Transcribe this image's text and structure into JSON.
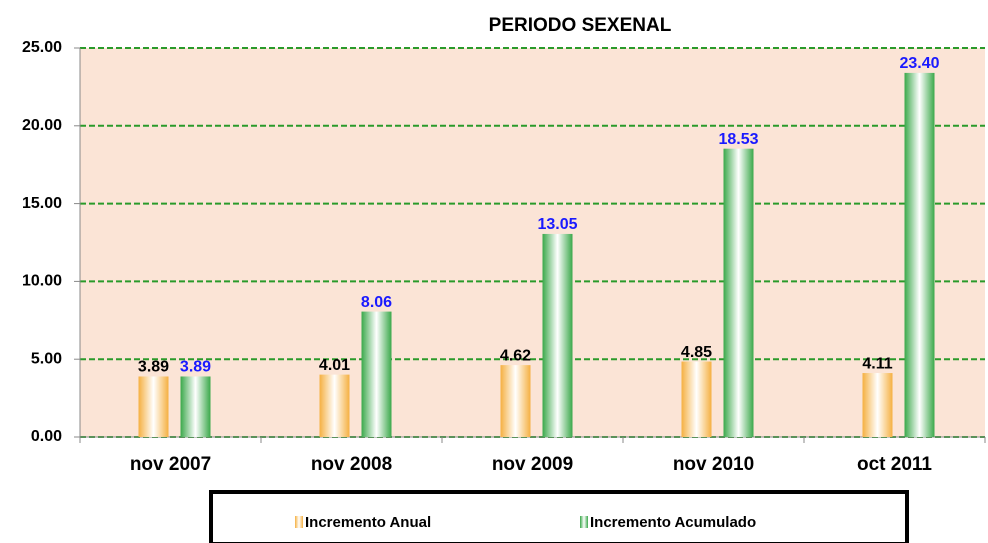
{
  "chart_data": {
    "type": "bar",
    "title": "PERIODO SEXENAL",
    "categories": [
      "nov 2007",
      "nov 2008",
      "nov 2009",
      "nov 2010",
      "oct 2011"
    ],
    "series": [
      {
        "name": "Incremento Anual",
        "color": "#f5b041",
        "values": [
          3.89,
          4.01,
          4.62,
          4.85,
          4.11
        ],
        "value_labels": [
          "3.89",
          "4.01",
          "4.62",
          "4.85",
          "4.11"
        ],
        "label_color": "#000000"
      },
      {
        "name": "Incremento Acumulado",
        "color": "#3aa84a",
        "values": [
          3.89,
          8.06,
          13.05,
          18.53,
          23.4
        ],
        "value_labels": [
          "3.89",
          "8.06",
          "13.05",
          "18.53",
          "23.40"
        ],
        "label_color": "#1a1aff"
      }
    ],
    "ylim": [
      0,
      25
    ],
    "yticks": [
      {
        "value": 0,
        "label": "0.00"
      },
      {
        "value": 5,
        "label": "5.00"
      },
      {
        "value": 10,
        "label": "10.00"
      },
      {
        "value": 15,
        "label": "15.00"
      },
      {
        "value": 20,
        "label": "20.00"
      },
      {
        "value": 25,
        "label": "25.00"
      }
    ],
    "grid": true
  }
}
